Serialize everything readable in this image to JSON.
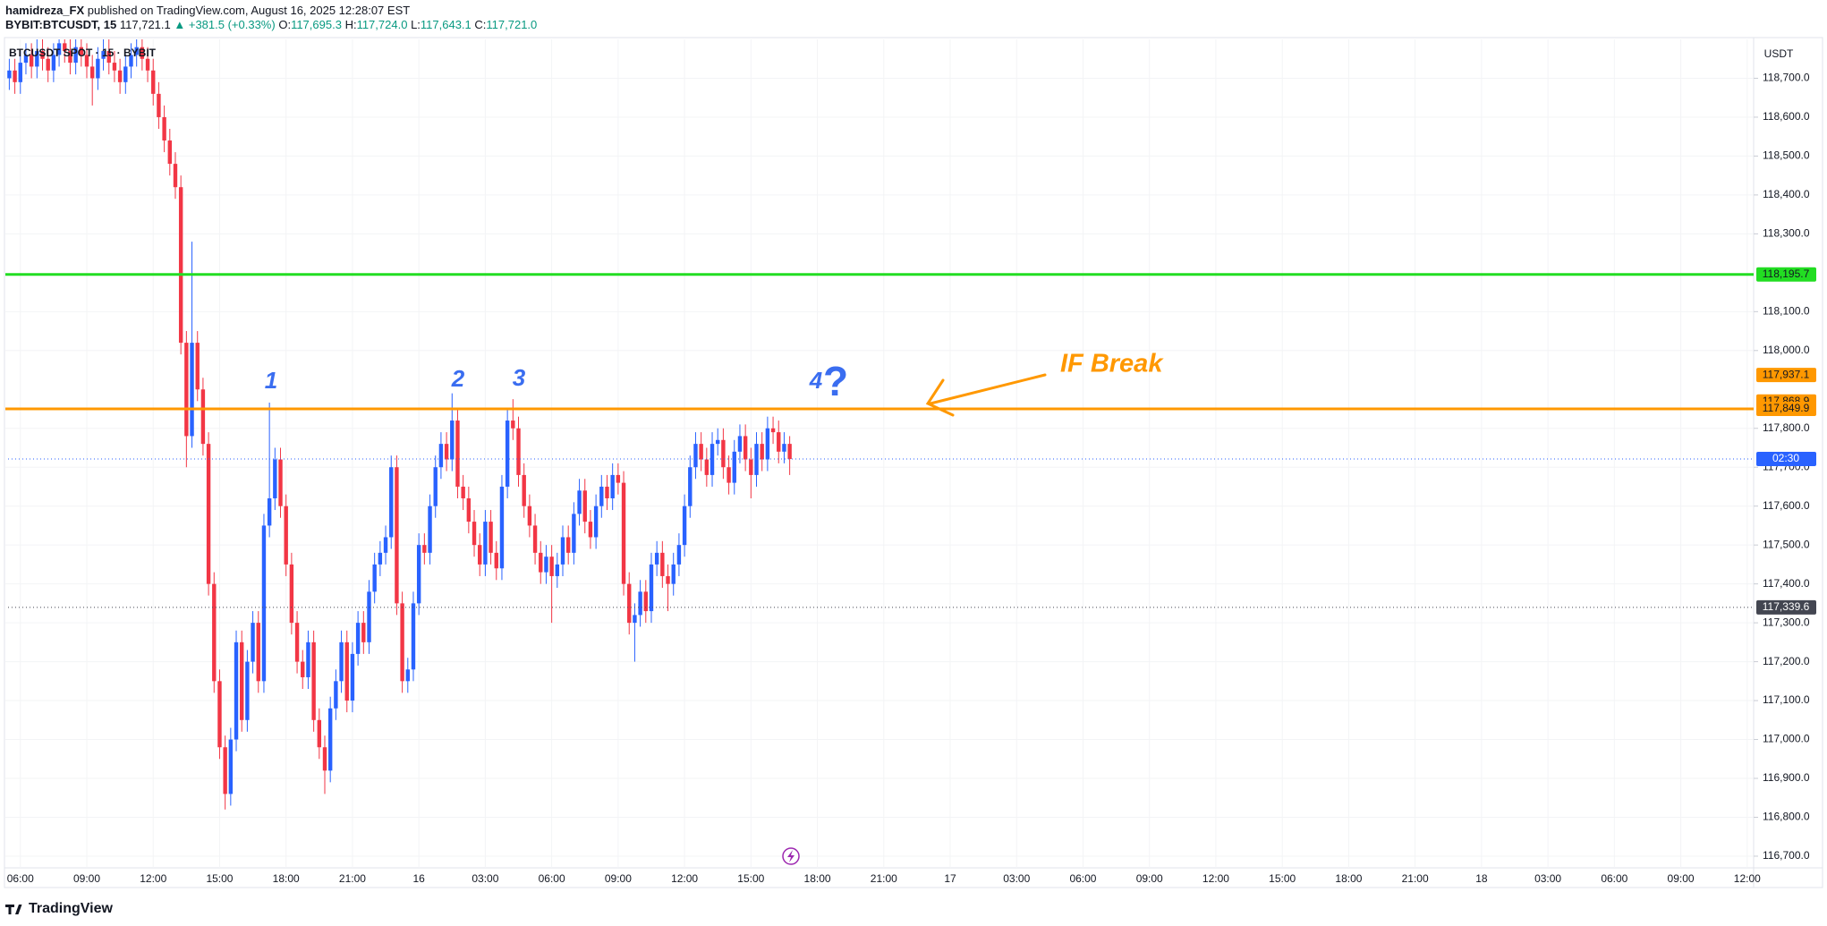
{
  "header": {
    "author": "hamidreza_FX",
    "published": "published on TradingView.com, August 16, 2025 12:28:07 EST",
    "symbol": "BYBIT:BTCUSDT, 15",
    "last": "117,721.1",
    "change": "▲ +381.5 (+0.33%)",
    "ohlc": [
      [
        "O:",
        "117,695.3"
      ],
      [
        "H:",
        "117,724.0"
      ],
      [
        "L:",
        "117,643.1"
      ],
      [
        "C:",
        "117,721.0"
      ]
    ],
    "pane_label": "BTCUSDT SPOT · 15 · BYBIT",
    "currency": "USDT"
  },
  "footer": {
    "brand": "TradingView"
  },
  "chart_data": {
    "type": "candlestick",
    "up_color": "#2962ff",
    "down_color": "#f23645",
    "ylim": [
      116670,
      118800
    ],
    "yticks": [
      {
        "value": 116700,
        "label": "116,700.0"
      },
      {
        "value": 116800,
        "label": "116,800.0"
      },
      {
        "value": 116900,
        "label": "116,900.0"
      },
      {
        "value": 117000,
        "label": "117,000.0"
      },
      {
        "value": 117100,
        "label": "117,100.0"
      },
      {
        "value": 117200,
        "label": "117,200.0"
      },
      {
        "value": 117300,
        "label": "117,300.0"
      },
      {
        "value": 117400,
        "label": "117,400.0"
      },
      {
        "value": 117500,
        "label": "117,500.0"
      },
      {
        "value": 117600,
        "label": "117,600.0"
      },
      {
        "value": 117700,
        "label": "117,700.0"
      },
      {
        "value": 117800,
        "label": "117,800.0"
      },
      {
        "value": 118000,
        "label": "118,000.0"
      },
      {
        "value": 118100,
        "label": "118,100.0"
      },
      {
        "value": 118300,
        "label": "118,300.0"
      },
      {
        "value": 118400,
        "label": "118,400.0"
      },
      {
        "value": 118500,
        "label": "118,500.0"
      },
      {
        "value": 118600,
        "label": "118,600.0"
      },
      {
        "value": 118700,
        "label": "118,700.0"
      }
    ],
    "time_labels": [
      "06:00",
      "09:00",
      "12:00",
      "15:00",
      "18:00",
      "21:00",
      "16",
      "03:00",
      "06:00",
      "09:00",
      "12:00",
      "15:00",
      "18:00",
      "21:00",
      "17",
      "03:00",
      "06:00",
      "09:00",
      "12:00",
      "15:00",
      "18:00",
      "21:00",
      "18",
      "03:00",
      "06:00",
      "09:00",
      "12:00"
    ],
    "price_lines": [
      {
        "value": 118195.7,
        "label": "118,195.7",
        "color": "#22dd22"
      },
      {
        "value": 117849.9,
        "label": "117,849.9",
        "color": "#ff9800"
      }
    ],
    "price_tags": [
      {
        "value": 117937.1,
        "label": "117,937.1",
        "color": "#ff9800"
      },
      {
        "value": 117868.9,
        "label": "117,868.9",
        "color": "#ff9800"
      }
    ],
    "dotted_lines": [
      {
        "value": 117721.1,
        "label": "02:30",
        "color": "#2962ff"
      },
      {
        "value": 117339.6,
        "label": "117,339.6",
        "color": "#434651"
      }
    ],
    "annotations": [
      "1",
      "2",
      "3",
      "4",
      "?",
      "IF Break"
    ],
    "ohlc": [
      [
        118700,
        118750,
        118670,
        118720
      ],
      [
        118720,
        118750,
        118660,
        118690
      ],
      [
        118690,
        118770,
        118660,
        118740
      ],
      [
        118740,
        118790,
        118710,
        118760
      ],
      [
        118760,
        118790,
        118700,
        118730
      ],
      [
        118730,
        118800,
        118700,
        118770
      ],
      [
        118770,
        118800,
        118720,
        118750
      ],
      [
        118750,
        118780,
        118690,
        118720
      ],
      [
        118720,
        118790,
        118690,
        118760
      ],
      [
        118760,
        118820,
        118730,
        118790
      ],
      [
        118790,
        118820,
        118740,
        118770
      ],
      [
        118770,
        118800,
        118710,
        118740
      ],
      [
        118740,
        118810,
        118710,
        118780
      ],
      [
        118780,
        118810,
        118730,
        118760
      ],
      [
        118760,
        118790,
        118700,
        118730
      ],
      [
        118730,
        118760,
        118630,
        118700
      ],
      [
        118700,
        118780,
        118670,
        118750
      ],
      [
        118750,
        118800,
        118720,
        118770
      ],
      [
        118770,
        118800,
        118710,
        118740
      ],
      [
        118740,
        118770,
        118690,
        118720
      ],
      [
        118720,
        118750,
        118660,
        118690
      ],
      [
        118690,
        118760,
        118660,
        118730
      ],
      [
        118730,
        118790,
        118700,
        118760
      ],
      [
        118760,
        118810,
        118730,
        118780
      ],
      [
        118780,
        118810,
        118720,
        118750
      ],
      [
        118750,
        118780,
        118690,
        118720
      ],
      [
        118720,
        118750,
        118630,
        118660
      ],
      [
        118660,
        118690,
        118570,
        118600
      ],
      [
        118600,
        118630,
        118510,
        118540
      ],
      [
        118540,
        118570,
        118450,
        118480
      ],
      [
        118480,
        118510,
        118390,
        118420
      ],
      [
        118420,
        118450,
        117990,
        118020
      ],
      [
        118020,
        118050,
        117700,
        117780
      ],
      [
        117780,
        118280,
        117750,
        118020
      ],
      [
        118020,
        118050,
        117870,
        117900
      ],
      [
        117900,
        117930,
        117730,
        117760
      ],
      [
        117760,
        117790,
        117370,
        117400
      ],
      [
        117400,
        117430,
        117120,
        117150
      ],
      [
        117150,
        117180,
        116950,
        116980
      ],
      [
        116980,
        117010,
        116820,
        116860
      ],
      [
        116860,
        117030,
        116830,
        117000
      ],
      [
        117000,
        117280,
        116970,
        117250
      ],
      [
        117250,
        117280,
        117020,
        117050
      ],
      [
        117050,
        117230,
        117020,
        117200
      ],
      [
        117200,
        117330,
        117170,
        117300
      ],
      [
        117300,
        117330,
        117120,
        117150
      ],
      [
        117150,
        117580,
        117120,
        117550
      ],
      [
        117550,
        117866,
        117520,
        117620
      ],
      [
        117620,
        117750,
        117590,
        117720
      ],
      [
        117720,
        117750,
        117570,
        117600
      ],
      [
        117600,
        117630,
        117420,
        117450
      ],
      [
        117450,
        117480,
        117270,
        117300
      ],
      [
        117300,
        117330,
        117170,
        117200
      ],
      [
        117200,
        117230,
        117130,
        117160
      ],
      [
        117160,
        117280,
        117130,
        117250
      ],
      [
        117250,
        117280,
        117020,
        117050
      ],
      [
        117050,
        117080,
        116950,
        116980
      ],
      [
        116980,
        117010,
        116860,
        116920
      ],
      [
        116920,
        117110,
        116890,
        117080
      ],
      [
        117080,
        117180,
        117050,
        117150
      ],
      [
        117150,
        117280,
        117120,
        117250
      ],
      [
        117250,
        117280,
        117070,
        117100
      ],
      [
        117100,
        117250,
        117070,
        117220
      ],
      [
        117220,
        117330,
        117190,
        117300
      ],
      [
        117300,
        117330,
        117220,
        117250
      ],
      [
        117250,
        117410,
        117220,
        117380
      ],
      [
        117380,
        117480,
        117350,
        117450
      ],
      [
        117450,
        117510,
        117420,
        117480
      ],
      [
        117480,
        117550,
        117450,
        117520
      ],
      [
        117520,
        117730,
        117490,
        117700
      ],
      [
        117700,
        117730,
        117320,
        117350
      ],
      [
        117350,
        117380,
        117120,
        117150
      ],
      [
        117150,
        117210,
        117120,
        117180
      ],
      [
        117180,
        117380,
        117150,
        117350
      ],
      [
        117350,
        117530,
        117320,
        117500
      ],
      [
        117500,
        117530,
        117450,
        117480
      ],
      [
        117480,
        117630,
        117450,
        117600
      ],
      [
        117600,
        117730,
        117570,
        117700
      ],
      [
        117700,
        117790,
        117670,
        117760
      ],
      [
        117760,
        117790,
        117690,
        117720
      ],
      [
        117720,
        117890,
        117690,
        117820
      ],
      [
        117820,
        117850,
        117620,
        117650
      ],
      [
        117650,
        117680,
        117590,
        117620
      ],
      [
        117620,
        117650,
        117530,
        117560
      ],
      [
        117560,
        117590,
        117470,
        117500
      ],
      [
        117500,
        117530,
        117420,
        117450
      ],
      [
        117450,
        117590,
        117420,
        117560
      ],
      [
        117560,
        117590,
        117450,
        117480
      ],
      [
        117480,
        117510,
        117410,
        117440
      ],
      [
        117440,
        117680,
        117410,
        117650
      ],
      [
        117650,
        117850,
        117620,
        117820
      ],
      [
        117820,
        117875,
        117770,
        117800
      ],
      [
        117800,
        117830,
        117650,
        117680
      ],
      [
        117680,
        117710,
        117570,
        117600
      ],
      [
        117600,
        117630,
        117520,
        117550
      ],
      [
        117550,
        117580,
        117450,
        117480
      ],
      [
        117480,
        117510,
        117400,
        117430
      ],
      [
        117430,
        117500,
        117400,
        117470
      ],
      [
        117470,
        117500,
        117300,
        117420
      ],
      [
        117420,
        117480,
        117390,
        117450
      ],
      [
        117450,
        117550,
        117420,
        117520
      ],
      [
        117520,
        117550,
        117450,
        117480
      ],
      [
        117480,
        117610,
        117450,
        117580
      ],
      [
        117580,
        117670,
        117550,
        117640
      ],
      [
        117640,
        117670,
        117530,
        117560
      ],
      [
        117560,
        117590,
        117490,
        117520
      ],
      [
        117520,
        117630,
        117490,
        117600
      ],
      [
        117600,
        117680,
        117570,
        117650
      ],
      [
        117650,
        117680,
        117590,
        117620
      ],
      [
        117620,
        117710,
        117590,
        117680
      ],
      [
        117680,
        117710,
        117630,
        117660
      ],
      [
        117660,
        117690,
        117370,
        117400
      ],
      [
        117400,
        117430,
        117270,
        117300
      ],
      [
        117300,
        117350,
        117200,
        117320
      ],
      [
        117320,
        117410,
        117290,
        117380
      ],
      [
        117380,
        117410,
        117300,
        117330
      ],
      [
        117330,
        117480,
        117300,
        117450
      ],
      [
        117450,
        117510,
        117420,
        117480
      ],
      [
        117480,
        117510,
        117390,
        117420
      ],
      [
        117420,
        117450,
        117330,
        117400
      ],
      [
        117400,
        117480,
        117370,
        117450
      ],
      [
        117450,
        117530,
        117420,
        117500
      ],
      [
        117500,
        117630,
        117470,
        117600
      ],
      [
        117600,
        117730,
        117570,
        117700
      ],
      [
        117700,
        117790,
        117670,
        117760
      ],
      [
        117760,
        117790,
        117690,
        117720
      ],
      [
        117720,
        117750,
        117650,
        117680
      ],
      [
        117680,
        117790,
        117650,
        117760
      ],
      [
        117760,
        117800,
        117730,
        117770
      ],
      [
        117770,
        117800,
        117670,
        117700
      ],
      [
        117700,
        117730,
        117630,
        117660
      ],
      [
        117660,
        117770,
        117630,
        117740
      ],
      [
        117740,
        117810,
        117710,
        117780
      ],
      [
        117780,
        117810,
        117690,
        117720
      ],
      [
        117720,
        117750,
        117620,
        117680
      ],
      [
        117680,
        117790,
        117650,
        117760
      ],
      [
        117760,
        117790,
        117690,
        117720
      ],
      [
        117720,
        117830,
        117690,
        117800
      ],
      [
        117800,
        117830,
        117760,
        117790
      ],
      [
        117790,
        117820,
        117710,
        117740
      ],
      [
        117740,
        117790,
        117710,
        117760
      ],
      [
        117760,
        117780,
        117680,
        117721.1
      ]
    ]
  }
}
